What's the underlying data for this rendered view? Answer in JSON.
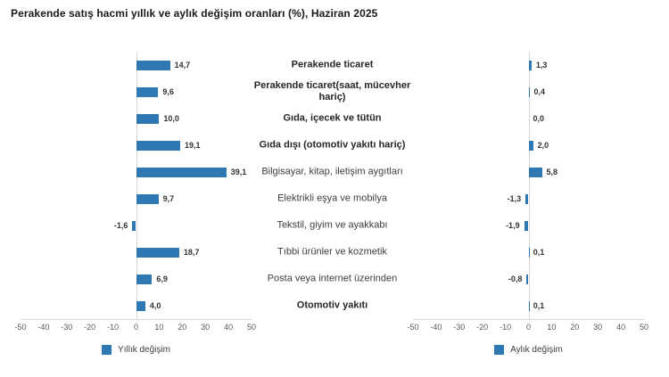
{
  "title": "Perakende satış hacmi yıllık ve aylık değişim oranları (%), Haziran 2025",
  "chart_data": {
    "type": "bar",
    "orientation": "horizontal",
    "unit": "%",
    "xlim": [
      -50,
      50
    ],
    "xticks": [
      -50,
      -40,
      -30,
      -20,
      -10,
      0,
      10,
      20,
      30,
      40,
      50
    ],
    "grid": "zero-line-only",
    "bar_color": "#2e78b4",
    "legend_position": "bottom",
    "categories": [
      "Perakende ticaret",
      "Perakende ticaret(saat, mücevher hariç)",
      "Gıda, içecek ve tütün",
      "Gıda dışı (otomotiv yakıtı hariç)",
      "Bilgisayar, kitap, iletişim aygıtları",
      "Elektrikli eşya ve mobilya",
      "Tekstil, giyim ve ayakkabı",
      "Tıbbi ürünler ve kozmetik",
      "Posta veya internet üzerinden",
      "Otomotiv yakıtı"
    ],
    "categories_bold": [
      true,
      true,
      true,
      true,
      false,
      false,
      false,
      false,
      false,
      true
    ],
    "series": [
      {
        "name": "Yıllık değişim",
        "values": [
          14.7,
          9.6,
          10.0,
          19.1,
          39.1,
          9.7,
          -1.6,
          18.7,
          6.9,
          4.0
        ],
        "value_labels": [
          "14,7",
          "9,6",
          "10,0",
          "19,1",
          "39,1",
          "9,7",
          "-1,6",
          "18,7",
          "6,9",
          "4,0"
        ]
      },
      {
        "name": "Aylık değişim",
        "values": [
          1.3,
          0.4,
          0.0,
          2.0,
          5.8,
          -1.3,
          -1.9,
          0.1,
          -0.8,
          0.1
        ],
        "value_labels": [
          "1,3",
          "0,4",
          "0,0",
          "2,0",
          "5,8",
          "-1,3",
          "-1,9",
          "0,1",
          "-0,8",
          "0,1"
        ]
      }
    ],
    "legend": [
      {
        "label": "Yıllık değişim"
      },
      {
        "label": "Aylık değişim"
      }
    ]
  }
}
